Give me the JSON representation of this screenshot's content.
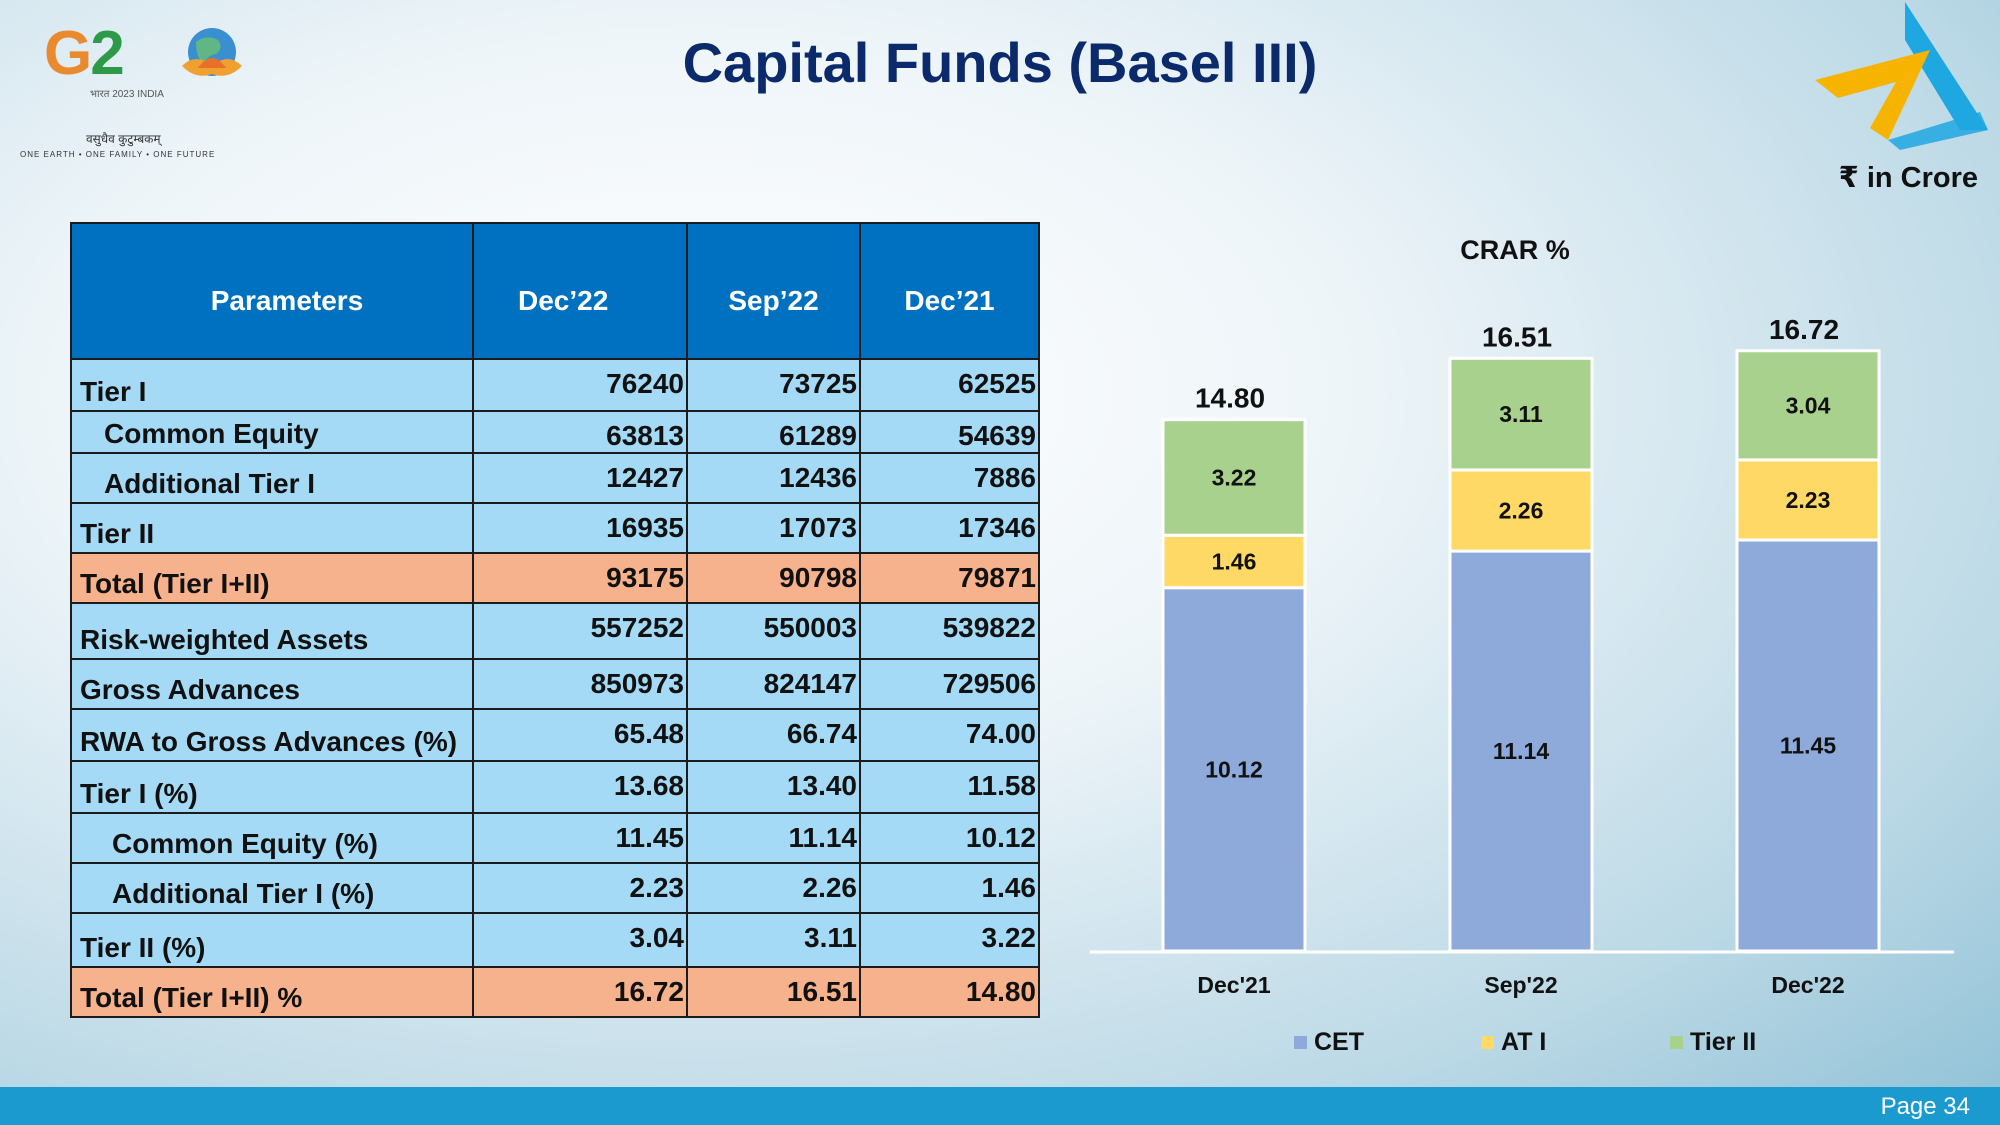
{
  "title": "Capital Funds (Basel III)",
  "unit_note": "₹ in Crore",
  "page_number": "Page 34",
  "logo": {
    "g20_text_g": "G",
    "g20_text_2": "2",
    "subtitle": "भारत 2023 INDIA",
    "hindi_motto": "वसुधैव कुटुम्बकम्",
    "tagline": "ONE EARTH • ONE FAMILY • ONE FUTURE"
  },
  "colors": {
    "header_blue": "#0070c0",
    "row_blue": "#a5daf6",
    "row_total": "#f6b28c",
    "title": "#0b2a6b",
    "cet": "#8eaadb",
    "at1": "#ffd966",
    "tier2": "#a9d18e"
  },
  "table": {
    "headers": [
      "Parameters",
      "Dec’22",
      "Sep’22",
      "Dec’21"
    ],
    "rows": [
      {
        "label": "Tier I",
        "values": [
          "76240",
          "73725",
          "62525"
        ],
        "indent": 0,
        "total": false
      },
      {
        "label": "Common Equity",
        "values": [
          "63813",
          "61289",
          "54639"
        ],
        "indent": 1,
        "total": false
      },
      {
        "label": "Additional Tier I",
        "values": [
          "12427",
          "12436",
          "7886"
        ],
        "indent": 1,
        "total": false
      },
      {
        "label": "Tier II",
        "values": [
          "16935",
          "17073",
          "17346"
        ],
        "indent": 0,
        "total": false
      },
      {
        "label": "Total (Tier I+II)",
        "values": [
          "93175",
          "90798",
          "79871"
        ],
        "indent": 0,
        "total": true
      },
      {
        "label": "Risk-weighted Assets",
        "values": [
          "557252",
          "550003",
          "539822"
        ],
        "indent": 0,
        "total": false
      },
      {
        "label": "Gross Advances",
        "values": [
          "850973",
          "824147",
          "729506"
        ],
        "indent": 0,
        "total": false
      },
      {
        "label": "RWA to Gross Advances (%)",
        "values": [
          "65.48",
          "66.74",
          "74.00"
        ],
        "indent": 0,
        "total": false
      },
      {
        "label": "Tier I (%)",
        "values": [
          "13.68",
          "13.40",
          "11.58"
        ],
        "indent": 0,
        "total": false
      },
      {
        "label": "Common Equity (%)",
        "values": [
          "11.45",
          "11.14",
          "10.12"
        ],
        "indent": 2,
        "total": false
      },
      {
        "label": "Additional Tier I (%)",
        "values": [
          "2.23",
          "2.26",
          "1.46"
        ],
        "indent": 2,
        "total": false
      },
      {
        "label": "Tier II (%)",
        "values": [
          "3.04",
          "3.11",
          "3.22"
        ],
        "indent": 0,
        "total": false
      },
      {
        "label": "Total (Tier I+II) %",
        "values": [
          "16.72",
          "16.51",
          "14.80"
        ],
        "indent": 0,
        "total": true
      }
    ]
  },
  "chart_data": {
    "type": "bar",
    "stacked": true,
    "title": "CRAR %",
    "categories": [
      "Dec'21",
      "Sep'22",
      "Dec'22"
    ],
    "series": [
      {
        "name": "CET",
        "values": [
          10.12,
          11.14,
          11.45
        ],
        "color": "#8eaadb"
      },
      {
        "name": "AT I",
        "values": [
          1.46,
          2.26,
          2.23
        ],
        "color": "#ffd966"
      },
      {
        "name": "Tier II",
        "values": [
          3.22,
          3.11,
          3.04
        ],
        "color": "#a9d18e"
      }
    ],
    "totals": [
      "14.80",
      "16.51",
      "16.72"
    ],
    "ylim": [
      0,
      18
    ],
    "grid": false,
    "legend": "bottom"
  }
}
